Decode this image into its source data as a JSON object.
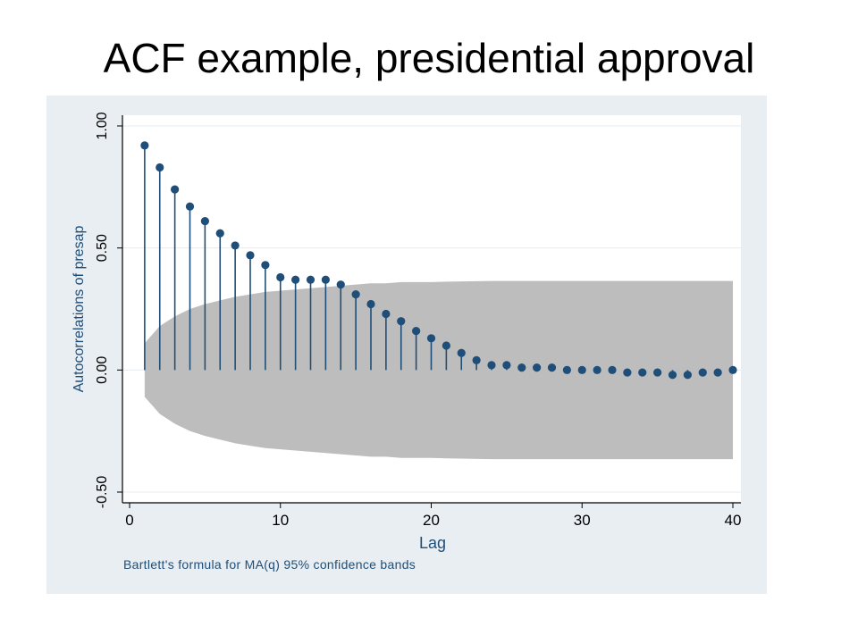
{
  "slide": {
    "title": "ACF example, presidential approval"
  },
  "colors": {
    "panel_bg": "#e8eef2",
    "plot_bg": "#ffffff",
    "band": "#bdbdbd",
    "marker": "#1f4e79",
    "grid": "#e6ecf0"
  },
  "chart_data": {
    "type": "scatter",
    "style": "stem",
    "xlabel": "Lag",
    "ylabel": "Autocorrelations of presap",
    "note": "Bartlett's formula for MA(q) 95% confidence bands",
    "xlim": [
      0,
      40
    ],
    "ylim": [
      -0.5,
      1.0
    ],
    "xticks": [
      0,
      10,
      20,
      30,
      40
    ],
    "xtick_labels": [
      "0",
      "10",
      "20",
      "30",
      "40"
    ],
    "yticks": [
      -0.5,
      0.0,
      0.5,
      1.0
    ],
    "ytick_labels": [
      "-0.50",
      "0.00",
      "0.50",
      "1.00"
    ],
    "grid": true,
    "series": [
      {
        "x": [
          1,
          2,
          3,
          4,
          5,
          6,
          7,
          8,
          9,
          10,
          11,
          12,
          13,
          14,
          15,
          16,
          17,
          18,
          19,
          20,
          21,
          22,
          23,
          24,
          25,
          26,
          27,
          28,
          29,
          30,
          31,
          32,
          33,
          34,
          35,
          36,
          37,
          38,
          39,
          40
        ],
        "values": [
          0.92,
          0.83,
          0.74,
          0.67,
          0.61,
          0.56,
          0.51,
          0.47,
          0.43,
          0.38,
          0.37,
          0.37,
          0.37,
          0.35,
          0.31,
          0.27,
          0.23,
          0.2,
          0.16,
          0.13,
          0.1,
          0.07,
          0.04,
          0.02,
          0.02,
          0.01,
          0.01,
          0.01,
          0.0,
          0.0,
          0.0,
          0.0,
          -0.01,
          -0.01,
          -0.01,
          -0.02,
          -0.02,
          -0.01,
          -0.01,
          0.0
        ]
      }
    ],
    "confidence_band": {
      "lags": [
        1,
        2,
        3,
        4,
        5,
        6,
        7,
        8,
        9,
        10,
        11,
        12,
        13,
        14,
        15,
        16,
        17,
        18,
        19,
        20,
        21,
        22,
        23,
        24,
        25,
        26,
        27,
        28,
        29,
        30,
        31,
        32,
        33,
        34,
        35,
        36,
        37,
        38,
        39,
        40
      ],
      "upper": [
        0.11,
        0.18,
        0.22,
        0.25,
        0.27,
        0.285,
        0.3,
        0.31,
        0.32,
        0.325,
        0.33,
        0.335,
        0.34,
        0.345,
        0.35,
        0.355,
        0.355,
        0.36,
        0.36,
        0.36,
        0.362,
        0.363,
        0.364,
        0.365,
        0.365,
        0.365,
        0.365,
        0.365,
        0.365,
        0.365,
        0.365,
        0.365,
        0.365,
        0.365,
        0.365,
        0.365,
        0.365,
        0.365,
        0.365,
        0.365
      ]
    }
  }
}
